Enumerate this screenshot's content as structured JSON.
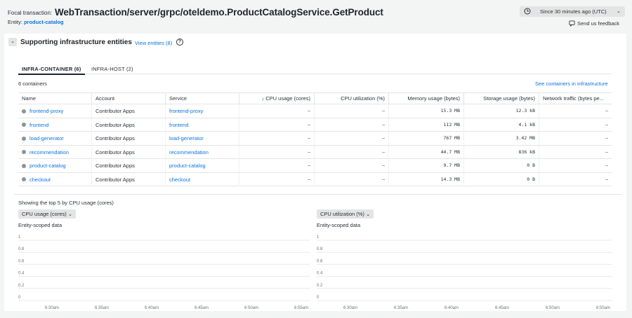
{
  "header": {
    "focal_label": "Focal transaction:",
    "focal_title": "WebTransaction/server/grpc/oteldemo.ProductCatalogService.GetProduct",
    "entity_label": "Entity:",
    "entity_value": "product-catalog",
    "time_range": "Since 30 minutes ago (UTC)",
    "feedback": "Send us feedback"
  },
  "section": {
    "title": "Supporting infrastructure entities",
    "view_entities": "View entities (8)",
    "help": "?"
  },
  "tabs": [
    {
      "label": "INFRA-CONTAINER (6)",
      "active": true
    },
    {
      "label": "INFRA-HOST (2)",
      "active": false
    }
  ],
  "container_count": "6 containers",
  "see_link": "See containers in infrastructure",
  "table": {
    "headers": [
      "Name",
      "Account",
      "Service",
      "↓ CPU usage (cores)",
      "CPU utilization (%)",
      "Memory usage (bytes)",
      "Storage usage (bytes)",
      "Network traffic (bytes pe..."
    ],
    "rows": [
      [
        "frontend-proxy",
        "Contributor Apps",
        "frontend-proxy",
        "–",
        "–",
        "15.3 MB",
        "12.3 kB",
        "–"
      ],
      [
        "frontend",
        "Contributor Apps",
        "frontend",
        "–",
        "–",
        "112 MB",
        "4.1 kB",
        "–"
      ],
      [
        "load-generator",
        "Contributor Apps",
        "load-generator",
        "–",
        "–",
        "767 MB",
        "3.42 MB",
        "–"
      ],
      [
        "recommendation",
        "Contributor Apps",
        "recommendation",
        "–",
        "–",
        "44.7 MB",
        "836 kB",
        "–"
      ],
      [
        "product-catalog",
        "Contributor Apps",
        "product-catalog",
        "–",
        "–",
        "9.7 MB",
        "0 B",
        "–"
      ],
      [
        "checkout",
        "Contributor Apps",
        "checkout",
        "–",
        "–",
        "14.3 MB",
        "0 B",
        "–"
      ]
    ]
  },
  "charts_caption": "Showing the top 5 by CPU usage (cores)",
  "charts": [
    {
      "metric": "CPU usage (cores) ⌄",
      "scope": "Entity-scoped data",
      "y_ticks": [
        "1",
        "0.8",
        "0.6",
        "0.4",
        "0.2",
        "0"
      ],
      "x_ticks": [
        "6:30am",
        "6:35am",
        "6:40am",
        "6:45am",
        "6:50am",
        "6:55am"
      ]
    },
    {
      "metric": "CPU utilization (%) ⌄",
      "scope": "Entity-scoped data",
      "y_ticks": [
        "1",
        "0.8",
        "0.6",
        "0.4",
        "0.2",
        "0"
      ],
      "x_ticks": [
        "6:30am",
        "6:35am",
        "6:40am",
        "6:45am",
        "6:50am",
        "6:55am"
      ]
    }
  ],
  "colors": {
    "link": "#0c74df",
    "status_dot": "#8e9494"
  }
}
